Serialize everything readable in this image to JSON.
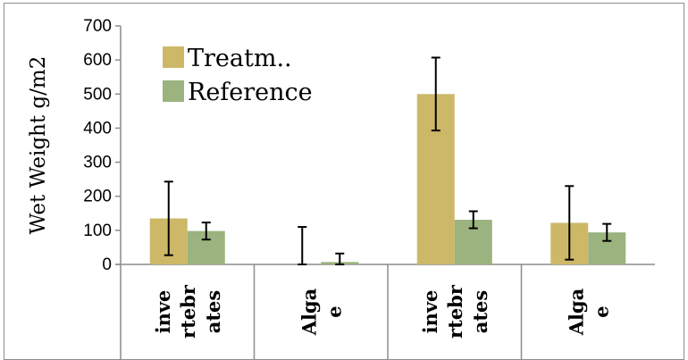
{
  "chart_data": {
    "type": "bar",
    "ylabel": "Wet Weight g/m2",
    "ylim": [
      0,
      700
    ],
    "yticks": [
      0,
      100,
      200,
      300,
      400,
      500,
      600,
      700
    ],
    "categories": [
      [
        "inve",
        "rtebr",
        "ates"
      ],
      [
        "Alga",
        "e"
      ],
      [
        "inve",
        "rtebr",
        "ates"
      ],
      [
        "Alga",
        "e"
      ]
    ],
    "series": [
      {
        "name": "Treatm..",
        "color": "#cdb868",
        "values": [
          135,
          0,
          500,
          122
        ],
        "error": [
          108,
          110,
          107,
          108
        ]
      },
      {
        "name": "Reference",
        "color": "#9bb37e",
        "values": [
          98,
          7,
          131,
          94
        ],
        "error": [
          25,
          25,
          25,
          25
        ]
      }
    ],
    "legend_position": "top-left",
    "grid": false
  }
}
